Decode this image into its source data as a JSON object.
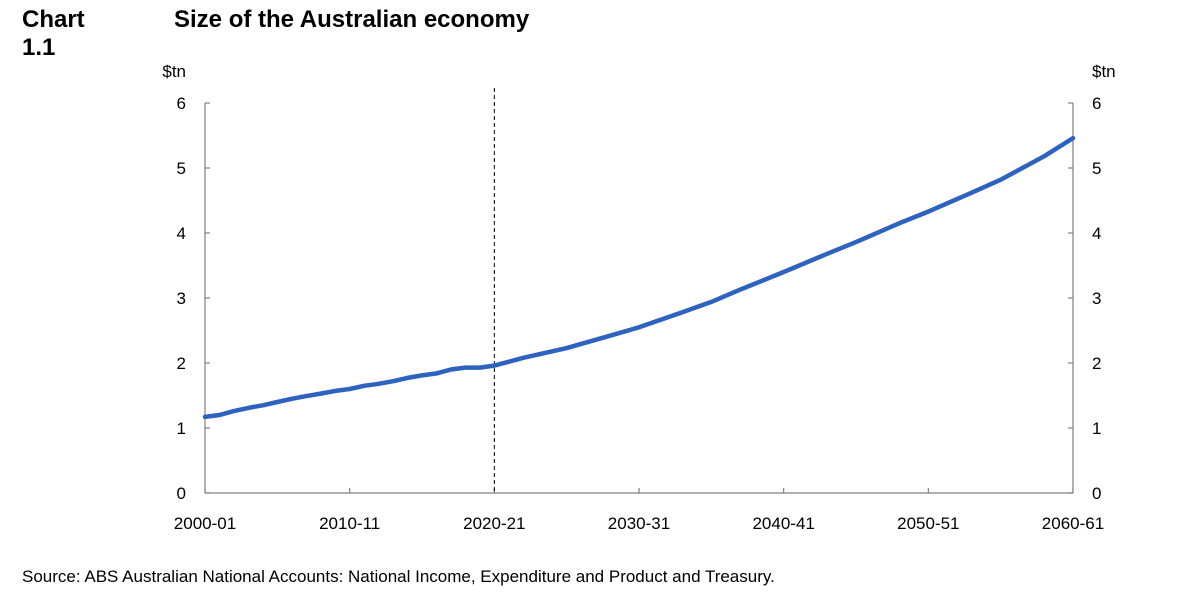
{
  "header": {
    "chart_label": "Chart 1.1",
    "title": "Size of the Australian economy"
  },
  "source": "Source: ABS Australian National Accounts: National Income, Expenditure and Product and Treasury.",
  "colors": {
    "series_line": "#2e62c0",
    "axis": "#808080",
    "marker_line": "#000000"
  },
  "chart_data": {
    "type": "line",
    "title": "Size of the Australian economy",
    "ylabel_left": "$tn",
    "ylabel_right": "$tn",
    "xlabel": "",
    "ylim": [
      0,
      6
    ],
    "y_ticks": [
      0,
      1,
      2,
      3,
      4,
      5,
      6
    ],
    "x_start_year": 2000,
    "x_end_year": 2060,
    "x_tick_years": [
      2000,
      2010,
      2020,
      2030,
      2040,
      2050,
      2060
    ],
    "x_tick_labels": [
      "2000-01",
      "2010-11",
      "2020-21",
      "2030-31",
      "2040-41",
      "2050-51",
      "2060-61"
    ],
    "grid": false,
    "legend": "none",
    "projection_marker_year": 2020,
    "projection_marker_label": "2020-21",
    "series": [
      {
        "x": [
          "2000-01",
          "2001-02",
          "2002-03",
          "2003-04",
          "2004-05",
          "2005-06",
          "2006-07",
          "2007-08",
          "2008-09",
          "2009-10",
          "2010-11",
          "2011-12",
          "2012-13",
          "2013-14",
          "2014-15",
          "2015-16",
          "2016-17",
          "2017-18",
          "2018-19",
          "2019-20",
          "2020-21",
          "2022-23",
          "2025-26",
          "2028-29",
          "2030-31",
          "2033-34",
          "2035-36",
          "2037-38",
          "2040-41",
          "2043-44",
          "2045-46",
          "2048-49",
          "2050-51",
          "2053-54",
          "2055-56",
          "2058-59",
          "2060-61"
        ],
        "values": [
          1.17,
          1.2,
          1.26,
          1.31,
          1.35,
          1.4,
          1.45,
          1.49,
          1.53,
          1.57,
          1.6,
          1.65,
          1.68,
          1.72,
          1.77,
          1.81,
          1.84,
          1.9,
          1.93,
          1.93,
          1.96,
          2.08,
          2.23,
          2.42,
          2.55,
          2.78,
          2.94,
          3.13,
          3.4,
          3.68,
          3.86,
          4.15,
          4.33,
          4.62,
          4.82,
          5.18,
          5.46
        ]
      }
    ]
  }
}
